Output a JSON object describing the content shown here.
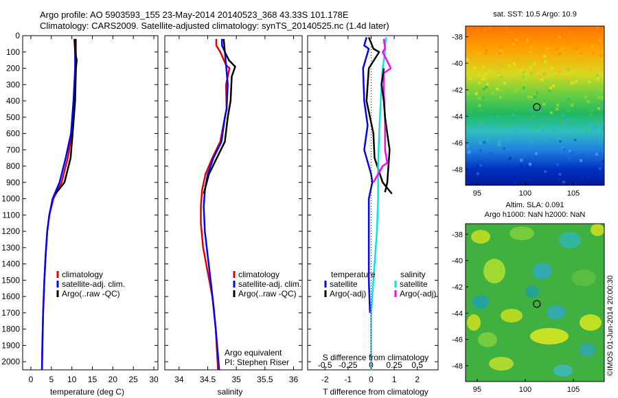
{
  "header": {
    "title_line1": "Argo profile: AO 5903593_155 23-May-2014 20140523_368 43.33S 101.178E",
    "title_line2": "Climatology: CARS2009. Satellite-adjusted climatology: synTS_20140525.nc (1.4d later)"
  },
  "colors": {
    "climatology": "#e00000",
    "satellite": "#0000ff",
    "argo": "#000000",
    "sal_satellite": "#00e6e6",
    "sal_argo": "#ff00ff"
  },
  "chart_data": [
    {
      "type": "line",
      "id": "temperature",
      "xlabel": "temperature (deg C)",
      "ylabel": "",
      "xlim": [
        -2,
        31
      ],
      "ylim": [
        2050,
        0
      ],
      "xticks": [
        0,
        5,
        10,
        15,
        20,
        25,
        30
      ],
      "yticks": [
        0,
        100,
        200,
        300,
        400,
        500,
        600,
        700,
        800,
        900,
        1000,
        1100,
        1200,
        1300,
        1400,
        1500,
        1600,
        1700,
        1800,
        1900,
        2000
      ],
      "legend": [
        "climatology",
        "satellite-adj. clim.",
        "Argo(..raw -QC)"
      ],
      "series": [
        {
          "name": "climatology",
          "color": "#e00000",
          "points": [
            [
              11,
              20
            ],
            [
              11,
              100
            ],
            [
              11,
              200
            ],
            [
              10.6,
              400
            ],
            [
              10,
              600
            ],
            [
              9,
              750
            ],
            [
              7.5,
              900
            ],
            [
              5.5,
              1000
            ],
            [
              4.5,
              1100
            ],
            [
              4,
              1200
            ],
            [
              3.6,
              1350
            ],
            [
              3.3,
              1500
            ],
            [
              3,
              1700
            ],
            [
              2.8,
              1900
            ],
            [
              2.7,
              2050
            ]
          ]
        },
        {
          "name": "satellite-adj. clim.",
          "color": "#0000ff",
          "points": [
            [
              10.6,
              20
            ],
            [
              10.8,
              100
            ],
            [
              10.8,
              200
            ],
            [
              10.4,
              400
            ],
            [
              9.8,
              600
            ],
            [
              8.5,
              750
            ],
            [
              7,
              900
            ],
            [
              5.3,
              1000
            ],
            [
              4.5,
              1100
            ],
            [
              4,
              1200
            ],
            [
              3.6,
              1350
            ],
            [
              3.3,
              1500
            ],
            [
              3,
              1700
            ],
            [
              2.8,
              1900
            ],
            [
              2.7,
              2050
            ]
          ]
        },
        {
          "name": "Argo(..raw -QC)",
          "color": "#000000",
          "points": [
            [
              10.8,
              20
            ],
            [
              10.8,
              100
            ],
            [
              11.2,
              150
            ],
            [
              11,
              200
            ],
            [
              10.8,
              400
            ],
            [
              10.2,
              600
            ],
            [
              9.7,
              750
            ],
            [
              8.2,
              900
            ],
            [
              6,
              970
            ]
          ]
        }
      ]
    },
    {
      "type": "line",
      "id": "salinity",
      "xlabel": "salinity",
      "ylabel": "",
      "xlim": [
        33.75,
        36.15
      ],
      "ylim": [
        2050,
        0
      ],
      "xticks": [
        34,
        34.5,
        35,
        35.5,
        36
      ],
      "legend": [
        "climatology",
        "satellite-adj. clim.",
        "Argo(..raw -QC)"
      ],
      "annotation": [
        "Argo equivalent",
        "PI: Stephen Riser"
      ],
      "series": [
        {
          "name": "climatology",
          "color": "#e00000",
          "points": [
            [
              34.65,
              20
            ],
            [
              34.65,
              60
            ],
            [
              34.72,
              100
            ],
            [
              34.82,
              180
            ],
            [
              34.88,
              200
            ],
            [
              34.82,
              300
            ],
            [
              34.83,
              450
            ],
            [
              34.8,
              500
            ],
            [
              34.72,
              650
            ],
            [
              34.58,
              750
            ],
            [
              34.46,
              850
            ],
            [
              34.4,
              950
            ],
            [
              34.38,
              1050
            ],
            [
              34.38,
              1150
            ],
            [
              34.42,
              1300
            ],
            [
              34.5,
              1450
            ],
            [
              34.58,
              1600
            ],
            [
              34.64,
              1800
            ],
            [
              34.68,
              2050
            ]
          ]
        },
        {
          "name": "satellite-adj. clim.",
          "color": "#0000ff",
          "points": [
            [
              34.75,
              20
            ],
            [
              34.75,
              60
            ],
            [
              34.8,
              100
            ],
            [
              34.82,
              180
            ],
            [
              34.85,
              300
            ],
            [
              34.83,
              450
            ],
            [
              34.8,
              500
            ],
            [
              34.74,
              650
            ],
            [
              34.6,
              750
            ],
            [
              34.5,
              850
            ],
            [
              34.45,
              950
            ],
            [
              34.43,
              1050
            ],
            [
              34.45,
              1200
            ],
            [
              34.5,
              1350
            ],
            [
              34.55,
              1500
            ],
            [
              34.6,
              1650
            ],
            [
              34.64,
              1800
            ],
            [
              34.7,
              2050
            ]
          ]
        },
        {
          "name": "Argo(..raw -QC)",
          "color": "#000000",
          "points": [
            [
              34.78,
              20
            ],
            [
              34.8,
              100
            ],
            [
              34.87,
              150
            ],
            [
              34.98,
              190
            ],
            [
              34.92,
              250
            ],
            [
              34.9,
              400
            ],
            [
              34.85,
              500
            ],
            [
              34.8,
              650
            ],
            [
              34.66,
              750
            ],
            [
              34.52,
              850
            ],
            [
              34.43,
              970
            ]
          ]
        }
      ]
    },
    {
      "type": "line",
      "id": "difference",
      "xlabel": "T difference from climatology",
      "ylabel": "",
      "xlim": [
        -2.75,
        2.9
      ],
      "ylim": [
        2050,
        0
      ],
      "xticks": [
        -2,
        -1,
        0,
        1,
        2
      ],
      "secondary_xlabel": "S difference from climatology",
      "secondary_xticks": [
        -0.5,
        -0.25,
        0,
        0.25,
        0.5
      ],
      "legend_titles": [
        "temperature",
        "salinity"
      ],
      "legend": [
        "satellite",
        "Argo(-adj)",
        "satellite",
        "Argo(-adj)"
      ],
      "series": [
        {
          "name": "temperature satellite",
          "color": "#0000ff",
          "points": [
            [
              -0.2,
              10
            ],
            [
              -0.3,
              60
            ],
            [
              -0.1,
              80
            ],
            [
              -0.35,
              200
            ],
            [
              -0.3,
              400
            ],
            [
              -0.15,
              550
            ],
            [
              -0.3,
              700
            ],
            [
              0,
              850
            ],
            [
              0.05,
              900
            ],
            [
              -0.1,
              1000
            ],
            [
              -0.1,
              1100
            ],
            [
              -0.1,
              1300
            ],
            [
              -0.1,
              1500
            ],
            [
              -0.05,
              1700
            ]
          ]
        },
        {
          "name": "temperature Argo(-adj)",
          "color": "#000000",
          "points": [
            [
              -0.1,
              10
            ],
            [
              0.1,
              80
            ],
            [
              0.35,
              100
            ],
            [
              -0.1,
              200
            ],
            [
              -0.2,
              400
            ],
            [
              0.1,
              600
            ],
            [
              0.15,
              750
            ],
            [
              0.5,
              900
            ],
            [
              0.9,
              970
            ]
          ]
        },
        {
          "name": "salinity satellite",
          "color": "#00e6e6",
          "points": [
            [
              0.65,
              10
            ],
            [
              0.6,
              60
            ],
            [
              0.6,
              100
            ],
            [
              0.5,
              200
            ],
            [
              0.45,
              300
            ],
            [
              0.4,
              450
            ],
            [
              0.35,
              600
            ],
            [
              0.3,
              800
            ],
            [
              0.3,
              1000
            ],
            [
              0.25,
              1200
            ],
            [
              0.1,
              1500
            ],
            [
              0,
              1700
            ],
            [
              0,
              2050
            ]
          ]
        },
        {
          "name": "salinity Argo(-adj)",
          "color": "#ff00ff",
          "points": [
            [
              0.55,
              20
            ],
            [
              0.6,
              80
            ],
            [
              0.5,
              100
            ],
            [
              0.85,
              200
            ],
            [
              0.55,
              230
            ],
            [
              0.55,
              350
            ],
            [
              0.6,
              500
            ],
            [
              0.6,
              600
            ],
            [
              0.6,
              700
            ],
            [
              0.7,
              780
            ],
            [
              0.5,
              800
            ],
            [
              0.3,
              850
            ],
            [
              0.1,
              900
            ]
          ]
        },
        {
          "name": "temperature Argo",
          "color": "#000000",
          "points": [
            [
              0.55,
              200
            ],
            [
              0.45,
              300
            ],
            [
              0.55,
              400
            ],
            [
              0.6,
              500
            ],
            [
              0.7,
              600
            ],
            [
              0.8,
              700
            ],
            [
              0.75,
              800
            ],
            [
              0.7,
              900
            ],
            [
              0.6,
              960
            ]
          ]
        }
      ]
    },
    {
      "type": "heatmap",
      "id": "sst-map",
      "title": "sat. SST: 10.5 Argo: 10.9",
      "xticks": [
        95,
        100,
        105
      ],
      "yticks": [
        -38,
        -40,
        -42,
        -44,
        -46,
        -48
      ],
      "xlim": [
        93.8,
        108.2
      ],
      "ylim": [
        -49.2,
        -37.2
      ],
      "marker": [
        101.2,
        -43.3
      ]
    },
    {
      "type": "heatmap",
      "id": "sla-map",
      "title_line1": "Altim. SLA: 0.091",
      "title_line2": "Argo h1000: NaN h2000: NaN",
      "side_label": "©IMOS 01-Jun-2014 20:00:30",
      "xticks": [
        95,
        100,
        105
      ],
      "yticks": [
        -38,
        -40,
        -42,
        -44,
        -46,
        -48
      ],
      "xlim": [
        93.8,
        108.2
      ],
      "ylim": [
        -49.2,
        -37.2
      ],
      "marker": [
        101.2,
        -43.3
      ]
    }
  ]
}
